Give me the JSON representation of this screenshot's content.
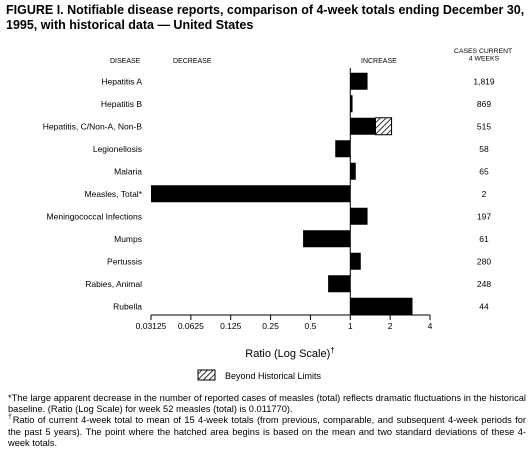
{
  "figure": {
    "title": "FIGURE I. Notifiable disease reports, comparison of 4-week totals ending December 30, 1995, with historical data — United States",
    "footnote_1": "*The large apparent decrease in the number of reported cases of measles (total) reflects dramatic fluctuations in the historical baseline. (Ratio (Log Scale) for week 52 measles (total) is 0.011770).",
    "footnote_2_mark": "†",
    "footnote_2": "Ratio of current 4-week total to mean of 15 4-week totals (from previous, comparable, and subsequent 4-week periods for the past 5 years). The point where the hatched area begins is based on the mean and two standard deviations of these 4-week totals."
  },
  "chart_data": {
    "type": "bar",
    "orientation": "horizontal",
    "x_scale": "log2",
    "xlim": [
      0.03125,
      4
    ],
    "baseline": 1,
    "xticks": [
      0.03125,
      0.0625,
      0.125,
      0.25,
      0.5,
      1,
      2,
      4
    ],
    "xtick_labels": [
      "0.03125",
      "0.0625",
      "0.125",
      "0.25",
      "0.5",
      "1",
      "2",
      "4"
    ],
    "xlabel": "Ratio (Log Scale)",
    "xlabel_mark": "†",
    "header_disease": "DISEASE",
    "header_decrease": "DECREASE",
    "header_increase": "INCREASE",
    "header_cases": "CASES CURRENT\n4 WEEKS",
    "legend_label": "Beyond Historical Limits",
    "colors": {
      "bar": "#000000",
      "hatch": "#000000",
      "background": "#ffffff"
    },
    "rows": [
      {
        "disease": "Hepatitis A",
        "ratio": 1.35,
        "cases": "1,819"
      },
      {
        "disease": "Hepatitis B",
        "ratio": 1.04,
        "cases": "869"
      },
      {
        "disease": "Hepatitis, C/Non-A, Non-B",
        "ratio": 2.05,
        "beyond_limits_from": 1.55,
        "cases": "515"
      },
      {
        "disease": "Legionellosis",
        "ratio": 0.77,
        "cases": "58"
      },
      {
        "disease": "Malaria",
        "ratio": 1.1,
        "cases": "65"
      },
      {
        "disease": "Measles, Total*",
        "ratio": 0.03125,
        "cases": "2"
      },
      {
        "disease": "Meningococcal Infections",
        "ratio": 1.35,
        "cases": "197"
      },
      {
        "disease": "Mumps",
        "ratio": 0.44,
        "cases": "61"
      },
      {
        "disease": "Pertussis",
        "ratio": 1.2,
        "cases": "280"
      },
      {
        "disease": "Rabies, Animal",
        "ratio": 0.68,
        "cases": "248"
      },
      {
        "disease": "Rubella",
        "ratio": 2.95,
        "cases": "44"
      }
    ]
  }
}
